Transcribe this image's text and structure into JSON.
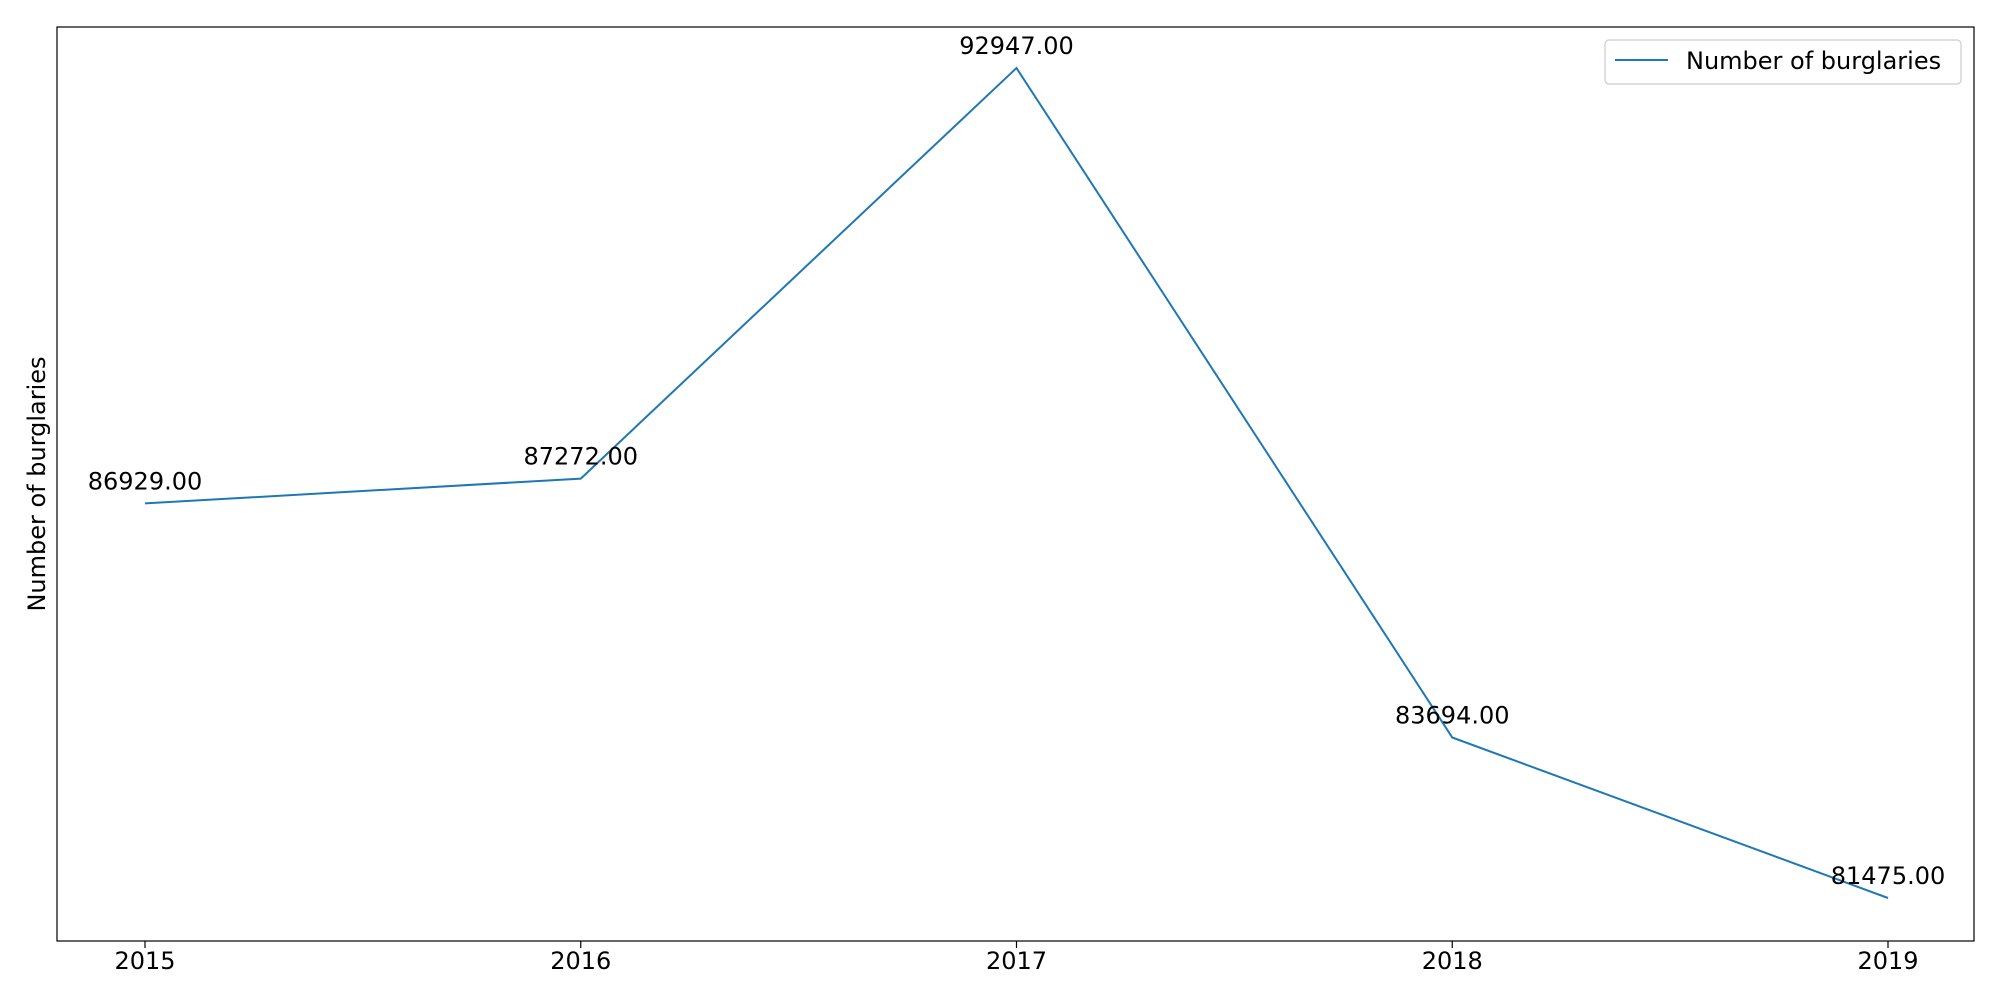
{
  "chart_data": {
    "type": "line",
    "categories": [
      "2015",
      "2016",
      "2017",
      "2018",
      "2019"
    ],
    "series": [
      {
        "name": "Number of burglaries",
        "values": [
          86929.0,
          87272.0,
          92947.0,
          83694.0,
          81475.0
        ],
        "color": "#1f77b4"
      }
    ],
    "data_labels": [
      "86929.00",
      "87272.00",
      "92947.00",
      "83694.00",
      "81475.00"
    ],
    "ylabel": "Number of burglaries",
    "xlabel": "",
    "y_ticks_shown": false,
    "grid": false,
    "legend_position": "top-right"
  }
}
